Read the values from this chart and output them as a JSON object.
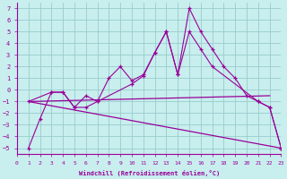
{
  "xlabel": "Windchill (Refroidissement éolien,°C)",
  "xlim": [
    0,
    23
  ],
  "ylim": [
    -5.5,
    7.5
  ],
  "yticks": [
    -5,
    -4,
    -3,
    -2,
    -1,
    0,
    1,
    2,
    3,
    4,
    5,
    6,
    7
  ],
  "xticks": [
    0,
    1,
    2,
    3,
    4,
    5,
    6,
    7,
    8,
    9,
    10,
    11,
    12,
    13,
    14,
    15,
    16,
    17,
    18,
    19,
    20,
    21,
    22,
    23
  ],
  "bg_color": "#c8eeee",
  "grid_color": "#99cccc",
  "line_color": "#990099",
  "series": [
    {
      "x": [
        1,
        2,
        3,
        4,
        5,
        6,
        7,
        8,
        9,
        10,
        11,
        12,
        13,
        14,
        15,
        16,
        17,
        18,
        19,
        20,
        21,
        22,
        23
      ],
      "y": [
        -5.0,
        -2.5,
        -0.2,
        -0.2,
        -1.5,
        -1.5,
        -1.0,
        1.0,
        2.0,
        0.8,
        1.3,
        3.2,
        5.0,
        1.3,
        7.0,
        5.0,
        3.5,
        2.0,
        1.0,
        -0.5,
        -1.0,
        -1.5,
        -5.0
      ],
      "has_marker": true
    },
    {
      "x": [
        1,
        3,
        4,
        5,
        6,
        7,
        10,
        11,
        12,
        13,
        14,
        15,
        16,
        17,
        21,
        22,
        23
      ],
      "y": [
        -1.0,
        -0.2,
        -0.2,
        -1.5,
        -0.5,
        -1.0,
        0.5,
        1.2,
        3.2,
        5.0,
        1.3,
        5.0,
        3.5,
        2.0,
        -1.0,
        -1.5,
        -5.0
      ],
      "has_marker": true
    },
    {
      "x": [
        1,
        22
      ],
      "y": [
        -1.0,
        -0.5
      ],
      "has_marker": false
    },
    {
      "x": [
        1,
        23
      ],
      "y": [
        -1.0,
        -5.0
      ],
      "has_marker": false
    }
  ]
}
